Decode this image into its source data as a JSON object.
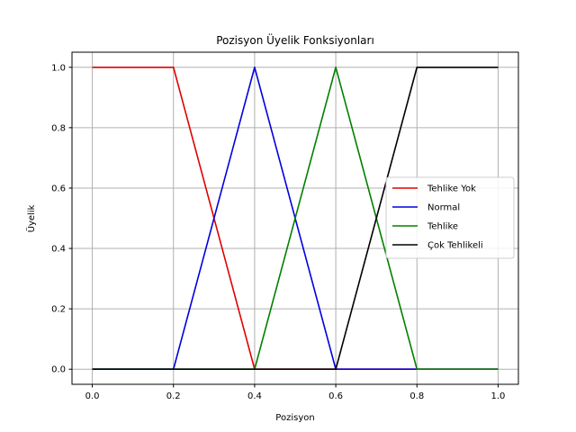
{
  "chart_data": {
    "type": "line",
    "title": "Pozisyon Üyelik Fonksiyonları",
    "xlabel": "Pozisyon",
    "ylabel": "Üyelik",
    "xlim": [
      -0.05,
      1.05
    ],
    "ylim": [
      -0.05,
      1.05
    ],
    "xticks": [
      0.0,
      0.2,
      0.4,
      0.6,
      0.8,
      1.0
    ],
    "xtick_labels": [
      "0.0",
      "0.2",
      "0.4",
      "0.6",
      "0.8",
      "1.0"
    ],
    "yticks": [
      0.0,
      0.2,
      0.4,
      0.6,
      0.8,
      1.0
    ],
    "ytick_labels": [
      "0.0",
      "0.2",
      "0.4",
      "0.6",
      "0.8",
      "1.0"
    ],
    "grid": true,
    "legend_position": "center-right",
    "series": [
      {
        "name": "Tehlike Yok",
        "color": "#e00000",
        "x": [
          0.0,
          0.2,
          0.4,
          1.0
        ],
        "y": [
          1.0,
          1.0,
          0.0,
          0.0
        ]
      },
      {
        "name": "Normal",
        "color": "#0000e0",
        "x": [
          0.0,
          0.2,
          0.4,
          0.6,
          1.0
        ],
        "y": [
          0.0,
          0.0,
          1.0,
          0.0,
          0.0
        ]
      },
      {
        "name": "Tehlike",
        "color": "#008000",
        "x": [
          0.0,
          0.4,
          0.6,
          0.8,
          1.0
        ],
        "y": [
          0.0,
          0.0,
          1.0,
          0.0,
          0.0
        ]
      },
      {
        "name": "Çok Tehlikeli",
        "color": "#000000",
        "x": [
          0.0,
          0.6,
          0.8,
          1.0
        ],
        "y": [
          0.0,
          0.0,
          1.0,
          1.0
        ]
      }
    ]
  }
}
